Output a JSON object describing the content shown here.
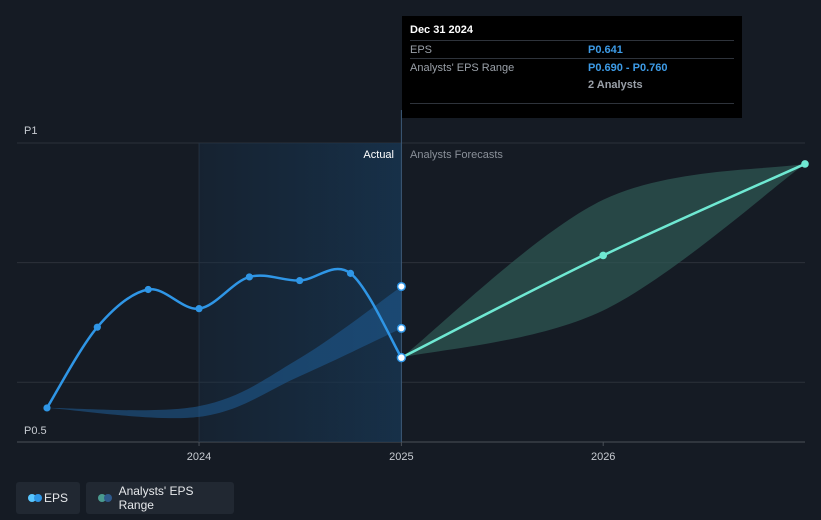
{
  "tooltip": {
    "date": "Dec 31 2024",
    "eps_label": "EPS",
    "eps_value": "P0.641",
    "range_label": "Analysts' EPS Range",
    "range_value": "P0.690 - P0.760",
    "analysts": "2 Analysts"
  },
  "labels": {
    "actual": "Actual",
    "forecast": "Analysts Forecasts"
  },
  "legend": {
    "eps": "EPS",
    "range": "Analysts' EPS Range"
  },
  "colors": {
    "eps": "#2f96e6",
    "forecast": "#6fe8d2",
    "band_past": "#1f5d96",
    "band_future": "#2f5a55",
    "background": "#151b24"
  },
  "chart_data": {
    "type": "line",
    "y_tick_labels": [
      "P1",
      "P0.5"
    ],
    "ylim": [
      0.5,
      1.0
    ],
    "x_tick_labels": [
      "2024",
      "2025",
      "2026"
    ],
    "xlim": [
      "2023-03-31",
      "2026-12-31"
    ],
    "series": [
      {
        "name": "EPS",
        "x": [
          "2023-03-31",
          "2023-06-30",
          "2023-09-30",
          "2023-12-31",
          "2024-03-31",
          "2024-06-30",
          "2024-09-30",
          "2024-12-31"
        ],
        "y": [
          0.557,
          0.692,
          0.755,
          0.723,
          0.776,
          0.77,
          0.782,
          0.641
        ]
      },
      {
        "name": "Analysts Forecasts",
        "x": [
          "2024-12-31",
          "2025-12-31",
          "2026-12-31"
        ],
        "y": [
          0.641,
          0.812,
          0.965
        ]
      }
    ],
    "ranges": [
      {
        "name": "Analysts' EPS Range",
        "x": [
          "2023-03-31",
          "2023-12-31",
          "2024-06-30",
          "2024-12-31"
        ],
        "low": [
          0.557,
          0.542,
          0.61,
          0.69
        ],
        "high": [
          0.557,
          0.56,
          0.64,
          0.76
        ]
      },
      {
        "name": "Analysts' EPS Range",
        "x": [
          "2024-12-31",
          "2025-12-31",
          "2026-12-31"
        ],
        "low": [
          0.641,
          0.72,
          0.965
        ],
        "high": [
          0.641,
          0.905,
          0.965
        ]
      }
    ]
  }
}
